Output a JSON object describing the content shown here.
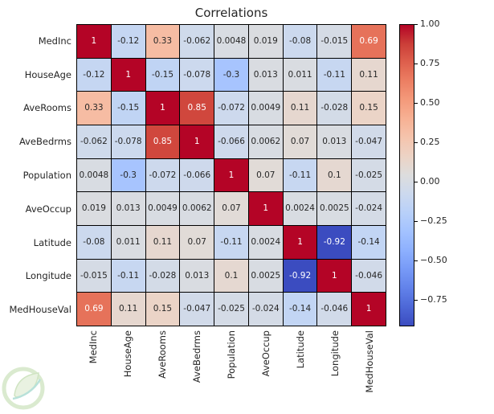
{
  "figure": {
    "background": "#ffffff",
    "text_color": "#262626"
  },
  "chart_data": {
    "type": "heatmap",
    "title": "Correlations",
    "categories": [
      "MedInc",
      "HouseAge",
      "AveRooms",
      "AveBedrms",
      "Population",
      "AveOccup",
      "Latitude",
      "Longitude",
      "MedHouseVal"
    ],
    "matrix": [
      [
        1,
        -0.12,
        0.33,
        -0.062,
        0.0048,
        0.019,
        -0.08,
        -0.015,
        0.69
      ],
      [
        -0.12,
        1,
        -0.15,
        -0.078,
        -0.3,
        0.013,
        0.011,
        -0.11,
        0.11
      ],
      [
        0.33,
        -0.15,
        1,
        0.85,
        -0.072,
        0.0049,
        0.11,
        -0.028,
        0.15
      ],
      [
        -0.062,
        -0.078,
        0.85,
        1,
        -0.066,
        0.0062,
        0.07,
        0.013,
        -0.047
      ],
      [
        0.0048,
        -0.3,
        -0.072,
        -0.066,
        1,
        0.07,
        -0.11,
        0.1,
        -0.025
      ],
      [
        0.019,
        0.013,
        0.0049,
        0.0062,
        0.07,
        1,
        0.0024,
        0.0025,
        -0.024
      ],
      [
        -0.08,
        0.011,
        0.11,
        0.07,
        -0.11,
        0.0024,
        1,
        -0.92,
        -0.14
      ],
      [
        -0.015,
        -0.11,
        -0.028,
        0.013,
        0.1,
        0.0025,
        -0.92,
        1,
        -0.046
      ],
      [
        0.69,
        0.11,
        0.15,
        -0.047,
        -0.025,
        -0.024,
        -0.14,
        -0.046,
        1
      ]
    ],
    "cell_labels": [
      [
        "1",
        "-0.12",
        "0.33",
        "-0.062",
        "0.0048",
        "0.019",
        "-0.08",
        "-0.015",
        "0.69"
      ],
      [
        "-0.12",
        "1",
        "-0.15",
        "-0.078",
        "-0.3",
        "0.013",
        "0.011",
        "-0.11",
        "0.11"
      ],
      [
        "0.33",
        "-0.15",
        "1",
        "0.85",
        "-0.072",
        "0.0049",
        "0.11",
        "-0.028",
        "0.15"
      ],
      [
        "-0.062",
        "-0.078",
        "0.85",
        "1",
        "-0.066",
        "0.0062",
        "0.07",
        "0.013",
        "-0.047"
      ],
      [
        "0.0048",
        "-0.3",
        "-0.072",
        "-0.066",
        "1",
        "0.07",
        "-0.11",
        "0.1",
        "-0.025"
      ],
      [
        "0.019",
        "0.013",
        "0.0049",
        "0.0062",
        "0.07",
        "1",
        "0.0024",
        "0.0025",
        "-0.024"
      ],
      [
        "-0.08",
        "0.011",
        "0.11",
        "0.07",
        "-0.11",
        "0.0024",
        "1",
        "-0.92",
        "-0.14"
      ],
      [
        "-0.015",
        "-0.11",
        "-0.028",
        "0.013",
        "0.1",
        "0.0025",
        "-0.92",
        "1",
        "-0.046"
      ],
      [
        "0.69",
        "0.11",
        "0.15",
        "-0.047",
        "-0.025",
        "-0.024",
        "-0.14",
        "-0.046",
        "1"
      ]
    ],
    "vmin": -0.92,
    "vmax": 1.0,
    "colormap": "coolwarm",
    "colormap_anchors": [
      [
        0.0,
        "#3B4CC0"
      ],
      [
        0.0625,
        "#4D68D7"
      ],
      [
        0.125,
        "#6282EA"
      ],
      [
        0.1875,
        "#779AF7"
      ],
      [
        0.25,
        "#8DB0FE"
      ],
      [
        0.3125,
        "#A3C2FF"
      ],
      [
        0.375,
        "#B8D0F9"
      ],
      [
        0.4375,
        "#CCD9EE"
      ],
      [
        0.5,
        "#DDDDDD"
      ],
      [
        0.5625,
        "#ECD3C5"
      ],
      [
        0.625,
        "#F5C4AD"
      ],
      [
        0.6875,
        "#F7B194"
      ],
      [
        0.75,
        "#F49A7B"
      ],
      [
        0.8125,
        "#EC7F63"
      ],
      [
        0.875,
        "#DE604D"
      ],
      [
        0.9375,
        "#CB3E38"
      ],
      [
        1.0,
        "#B40426"
      ]
    ],
    "grid_line_color": "#000000",
    "annotation_colors": {
      "dark": "#262626",
      "light": "#ffffff"
    },
    "legend_position": "right",
    "colorbar": {
      "tick_labels": [
        "1.00",
        "0.75",
        "0.50",
        "0.25",
        "0.00",
        "−0.25",
        "−0.50",
        "−0.75"
      ],
      "tick_values": [
        1.0,
        0.75,
        0.5,
        0.25,
        0.0,
        -0.25,
        -0.5,
        -0.75
      ]
    }
  },
  "watermark": {
    "name": "leaf-logo",
    "circle_color": "#A8CF8E",
    "leaf_color": "#CDE2B8",
    "swoosh_color": "#57B8A6"
  }
}
